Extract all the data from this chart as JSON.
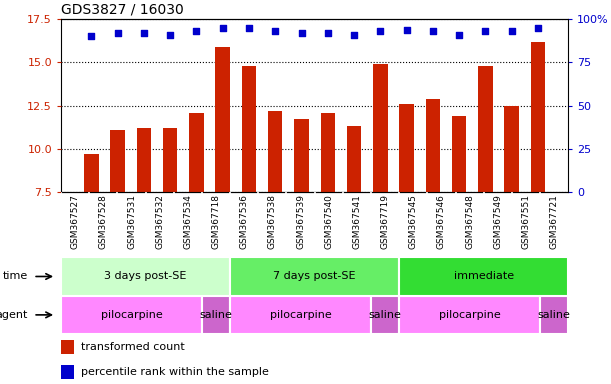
{
  "title": "GDS3827 / 16030",
  "samples": [
    "GSM367527",
    "GSM367528",
    "GSM367531",
    "GSM367532",
    "GSM367534",
    "GSM367718",
    "GSM367536",
    "GSM367538",
    "GSM367539",
    "GSM367540",
    "GSM367541",
    "GSM367719",
    "GSM367545",
    "GSM367546",
    "GSM367548",
    "GSM367549",
    "GSM367551",
    "GSM367721"
  ],
  "bar_values": [
    9.7,
    11.1,
    11.2,
    11.2,
    12.1,
    15.9,
    14.8,
    12.2,
    11.7,
    12.1,
    11.3,
    14.9,
    12.6,
    12.9,
    11.9,
    14.8,
    12.5,
    16.2
  ],
  "dot_values_pct": [
    90,
    92,
    92,
    91,
    93,
    95,
    95,
    93,
    92,
    92,
    91,
    93,
    94,
    93,
    91,
    93,
    93,
    95
  ],
  "ylim_left": [
    7.5,
    17.5
  ],
  "yticks_left": [
    7.5,
    10.0,
    12.5,
    15.0,
    17.5
  ],
  "yticks_right": [
    0,
    25,
    50,
    75,
    100
  ],
  "bar_color": "#cc2200",
  "dot_color": "#0000cc",
  "grid_color": "#000000",
  "bg_color": "#ffffff",
  "time_groups": [
    {
      "label": "3 days post-SE",
      "start": 0,
      "end": 5,
      "color": "#ccffcc"
    },
    {
      "label": "7 days post-SE",
      "start": 6,
      "end": 11,
      "color": "#66ee66"
    },
    {
      "label": "immediate",
      "start": 12,
      "end": 17,
      "color": "#33dd33"
    }
  ],
  "agent_groups": [
    {
      "label": "pilocarpine",
      "start": 0,
      "end": 4,
      "color": "#ff88ff"
    },
    {
      "label": "saline",
      "start": 5,
      "end": 5,
      "color": "#cc66cc"
    },
    {
      "label": "pilocarpine",
      "start": 6,
      "end": 10,
      "color": "#ff88ff"
    },
    {
      "label": "saline",
      "start": 11,
      "end": 11,
      "color": "#cc66cc"
    },
    {
      "label": "pilocarpine",
      "start": 12,
      "end": 16,
      "color": "#ff88ff"
    },
    {
      "label": "saline",
      "start": 17,
      "end": 17,
      "color": "#cc66cc"
    }
  ],
  "legend_bar_label": "transformed count",
  "legend_dot_label": "percentile rank within the sample",
  "time_label": "time",
  "agent_label": "agent",
  "xticklabel_row_color": "#dddddd",
  "xticklabel_row_height": 0.12
}
